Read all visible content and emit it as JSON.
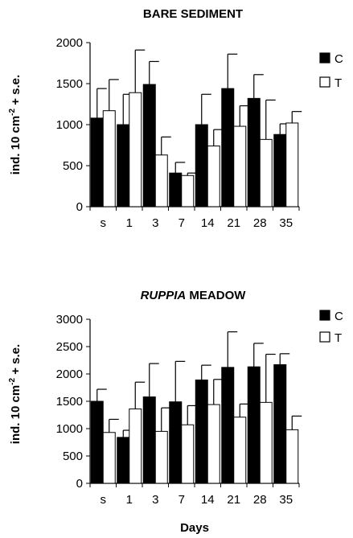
{
  "chart_data": [
    {
      "type": "bar",
      "title": "BARE SEDIMENT",
      "title_italic_part": "",
      "ylabel": "ind. 10 cm",
      "ylabel_sup": "-2",
      "ylabel_suffix": " + s.e.",
      "xlabel": "",
      "categories": [
        "s",
        "1",
        "3",
        "7",
        "14",
        "21",
        "28",
        "35"
      ],
      "ylim": [
        0,
        2000
      ],
      "yticks": [
        0,
        500,
        1000,
        1500,
        2000
      ],
      "legend_position": "right",
      "series": [
        {
          "name": "C",
          "color": "#000000",
          "values": [
            1080,
            1000,
            1490,
            410,
            1000,
            1440,
            1320,
            880
          ],
          "errors": [
            360,
            370,
            280,
            130,
            370,
            420,
            290,
            130
          ]
        },
        {
          "name": "T",
          "color": "#ffffff",
          "values": [
            1170,
            1390,
            630,
            380,
            740,
            980,
            820,
            1020
          ],
          "errors": [
            380,
            520,
            220,
            30,
            200,
            250,
            480,
            140
          ]
        }
      ]
    },
    {
      "type": "bar",
      "title": " MEADOW",
      "title_italic_part": "RUPPIA",
      "ylabel": "ind. 10 cm",
      "ylabel_sup": "-2",
      "ylabel_suffix": " + s.e.",
      "xlabel": "Days",
      "categories": [
        "s",
        "1",
        "3",
        "7",
        "14",
        "21",
        "28",
        "35"
      ],
      "ylim": [
        0,
        3000
      ],
      "yticks": [
        0,
        500,
        1000,
        1500,
        2000,
        2500,
        3000
      ],
      "legend_position": "top-right",
      "series": [
        {
          "name": "C",
          "color": "#000000",
          "values": [
            1500,
            840,
            1580,
            1490,
            1890,
            2120,
            2130,
            2170
          ],
          "errors": [
            220,
            130,
            610,
            740,
            270,
            650,
            430,
            200
          ]
        },
        {
          "name": "T",
          "color": "#ffffff",
          "values": [
            930,
            1360,
            950,
            1070,
            1440,
            1210,
            1480,
            980
          ],
          "errors": [
            240,
            490,
            430,
            350,
            460,
            240,
            880,
            250
          ]
        }
      ]
    }
  ]
}
